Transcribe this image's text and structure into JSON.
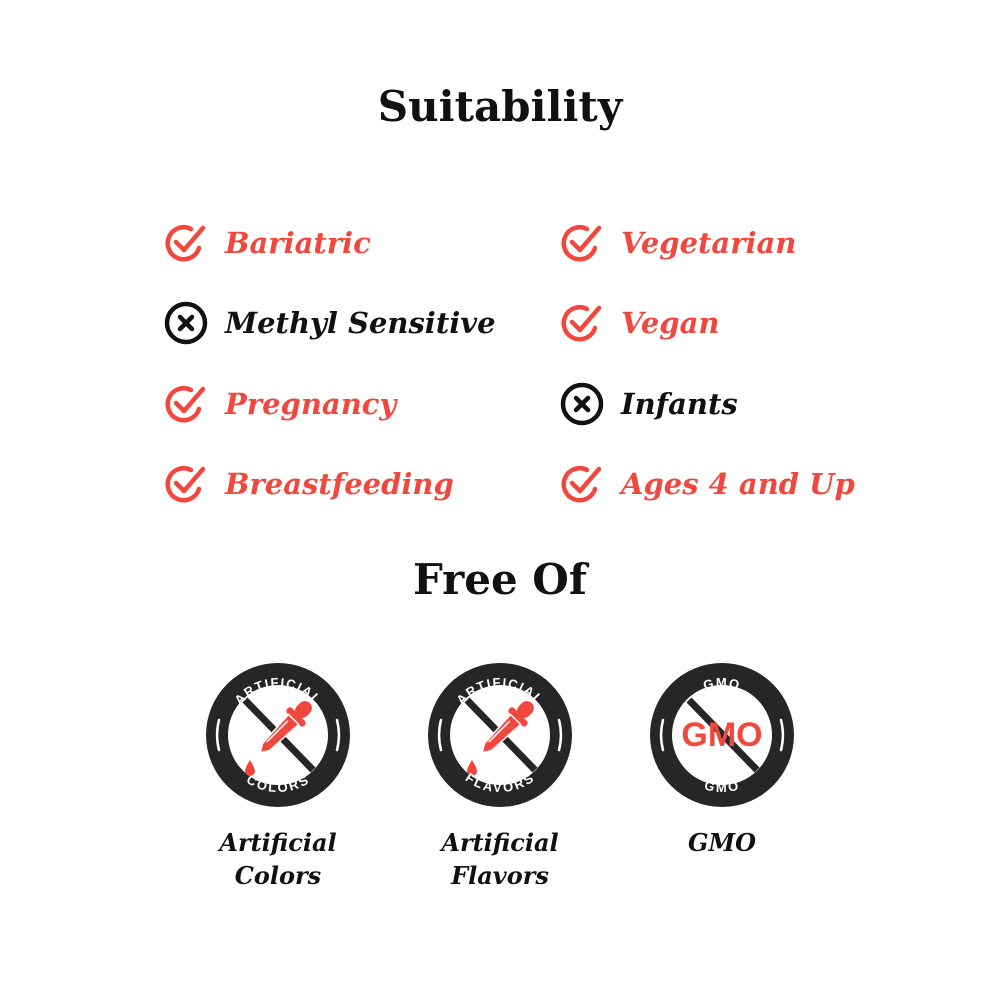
{
  "colors": {
    "accent": "#f0483e",
    "dark": "#262626"
  },
  "suitability": {
    "title": "Suitability",
    "items": [
      {
        "label": "Bariatric",
        "status": "yes",
        "icon": "check-circle-icon"
      },
      {
        "label": "Vegetarian",
        "status": "yes",
        "icon": "check-circle-icon"
      },
      {
        "label": "Methyl Sensitive",
        "status": "no",
        "icon": "x-circle-icon"
      },
      {
        "label": "Vegan",
        "status": "yes",
        "icon": "check-circle-icon"
      },
      {
        "label": "Pregnancy",
        "status": "yes",
        "icon": "check-circle-icon"
      },
      {
        "label": "Infants",
        "status": "no",
        "icon": "x-circle-icon"
      },
      {
        "label": "Breastfeeding",
        "status": "yes",
        "icon": "check-circle-icon"
      },
      {
        "label": "Ages 4 and Up",
        "status": "yes",
        "icon": "check-circle-icon"
      }
    ]
  },
  "free_of": {
    "title": "Free Of",
    "badges": [
      {
        "top": "ARTIFICIAL",
        "bottom": "COLORS",
        "center": "dropper",
        "caption_line1": "Artificial",
        "caption_line2": "Colors"
      },
      {
        "top": "ARTIFICIAL",
        "bottom": "FLAVORS",
        "center": "dropper",
        "caption_line1": "Artificial",
        "caption_line2": "Flavors"
      },
      {
        "top": "GMO",
        "bottom": "GMO",
        "center": "GMO",
        "caption_line1": "GMO",
        "caption_line2": ""
      }
    ]
  }
}
